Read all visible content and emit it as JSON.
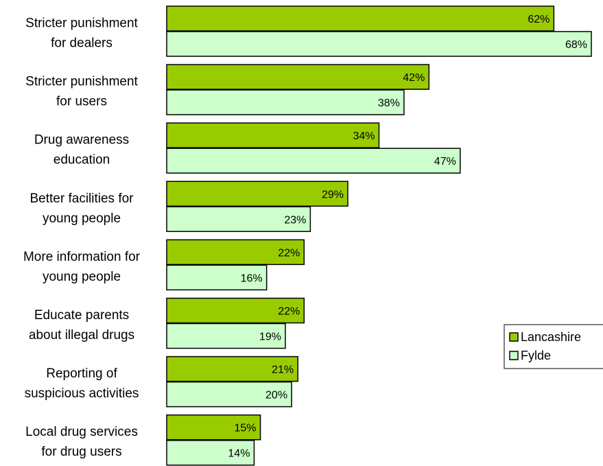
{
  "chart_data": {
    "type": "bar",
    "orientation": "horizontal",
    "categories": [
      [
        "Stricter punishment",
        "for dealers"
      ],
      [
        "Stricter punishment",
        "for users"
      ],
      [
        "Drug awareness",
        "education"
      ],
      [
        "Better facilities for",
        "young people"
      ],
      [
        "More information for",
        "young people"
      ],
      [
        "Educate parents",
        "about illegal drugs"
      ],
      [
        "Reporting of",
        "suspicious activities"
      ],
      [
        "Local drug services",
        "for drug users"
      ]
    ],
    "series": [
      {
        "name": "Lancashire",
        "color": "#99cc00",
        "values": [
          62,
          42,
          34,
          29,
          22,
          22,
          21,
          15
        ]
      },
      {
        "name": "Fylde",
        "color": "#ccffcc",
        "values": [
          68,
          38,
          47,
          23,
          16,
          19,
          20,
          14
        ]
      }
    ],
    "value_suffix": "%",
    "xlim": [
      0,
      68
    ],
    "grid": false,
    "legend_position": "right"
  }
}
